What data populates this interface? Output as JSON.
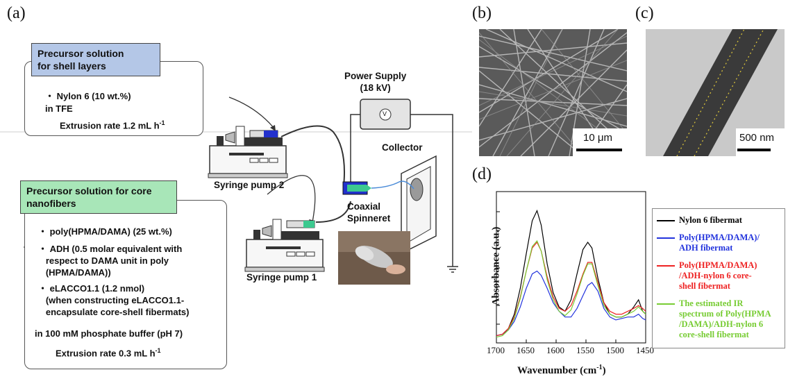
{
  "panels": {
    "a": "(a)",
    "b": "(b)",
    "c": "(c)",
    "d": "(d)"
  },
  "shell_box": {
    "header": "Precursor solution\nfor shell layers",
    "lines": [
      "・ Nylon 6 (10 wt.%)",
      "in TFE",
      "Extrusion rate 1.2 mL h",
      "-1"
    ]
  },
  "core_box": {
    "header": "Precursor solution for core\nnanofibers",
    "item1": "・ poly(HPMA/DAMA) (25 wt.%)",
    "item2": "・ ADH (0.5 molar equivalent with\n   respect to DAMA unit in poly\n   (HPMA/DAMA))",
    "item3": "・ eLACCO1.1 (1.2 nmol)\n   (when constructing eLACCO1.1-\n   encapsulate core-shell fibermats)",
    "buffer": "in 100 mM phosphate buffer (pH 7)",
    "rate": "Extrusion rate 0.3 mL h",
    "rate_sup": "-1"
  },
  "labels": {
    "power_supply": "Power Supply\n(18 kV)",
    "voltmeter": "V",
    "collector": "Collector",
    "pump2": "Syringe pump 2",
    "pump1": "Syringe pump 1",
    "spinneret": "Coaxial\nSpinneret"
  },
  "scalebars": {
    "b": "10 μm",
    "c": "500 nm"
  },
  "colors": {
    "shell_header": "#b4c7e7",
    "core_header": "#a8e6b8",
    "nylon": "#000000",
    "poly": "#2233dd",
    "coreshell": "#ee2222",
    "estimated": "#77cc33"
  },
  "chart_data": {
    "type": "line",
    "xlabel": "Wavenumber (cm",
    "xlabel_sup": "-1",
    "xlabel_end": ")",
    "ylabel": "Absorbance (a.u.)",
    "x_ticks": [
      "1700",
      "1650",
      "1600",
      "1550",
      "1500",
      "1450"
    ],
    "xlim": [
      1700,
      1450
    ],
    "legend": [
      {
        "name": "Nylon 6 fibermat",
        "color": "#000000"
      },
      {
        "name": "Poly(HPMA/DAMA)/\nADH fibermat",
        "color": "#2233dd"
      },
      {
        "name": "Poly(HPMA/DAMA)\n/ADH-nylon 6 core-\nshell fibermat",
        "color": "#ee2222"
      },
      {
        "name": "The estimated IR\nspectrum of Poly(HPMA\n/DAMA)/ADH-nylon 6\ncore-shell fibermat",
        "color": "#77cc33"
      }
    ],
    "series": [
      {
        "x": [
          1700,
          1690,
          1680,
          1670,
          1660,
          1650,
          1640,
          1632,
          1625,
          1615,
          1605,
          1595,
          1585,
          1575,
          1565,
          1555,
          1547,
          1540,
          1530,
          1520,
          1510,
          1500,
          1490,
          1480,
          1470,
          1462,
          1455,
          1450
        ],
        "y": [
          0.05,
          0.06,
          0.1,
          0.2,
          0.38,
          0.62,
          0.85,
          0.92,
          0.82,
          0.55,
          0.35,
          0.25,
          0.22,
          0.3,
          0.48,
          0.65,
          0.7,
          0.66,
          0.45,
          0.28,
          0.2,
          0.18,
          0.18,
          0.2,
          0.25,
          0.3,
          0.22,
          0.2
        ]
      },
      {
        "x": [
          1700,
          1690,
          1680,
          1670,
          1660,
          1650,
          1640,
          1632,
          1625,
          1615,
          1605,
          1595,
          1585,
          1575,
          1565,
          1555,
          1547,
          1540,
          1530,
          1520,
          1510,
          1500,
          1490,
          1480,
          1470,
          1462,
          1455,
          1450
        ],
        "y": [
          0.05,
          0.06,
          0.09,
          0.15,
          0.25,
          0.38,
          0.48,
          0.5,
          0.47,
          0.38,
          0.28,
          0.22,
          0.18,
          0.18,
          0.24,
          0.33,
          0.4,
          0.42,
          0.36,
          0.24,
          0.18,
          0.16,
          0.17,
          0.18,
          0.18,
          0.2,
          0.17,
          0.16
        ]
      },
      {
        "x": [
          1700,
          1690,
          1680,
          1670,
          1660,
          1650,
          1640,
          1632,
          1625,
          1615,
          1605,
          1595,
          1585,
          1575,
          1565,
          1555,
          1547,
          1540,
          1530,
          1520,
          1510,
          1500,
          1490,
          1480,
          1470,
          1462,
          1455,
          1450
        ],
        "y": [
          0.05,
          0.06,
          0.1,
          0.18,
          0.32,
          0.5,
          0.66,
          0.7,
          0.64,
          0.46,
          0.32,
          0.24,
          0.22,
          0.26,
          0.36,
          0.48,
          0.56,
          0.56,
          0.42,
          0.28,
          0.22,
          0.2,
          0.2,
          0.22,
          0.24,
          0.26,
          0.24,
          0.22
        ]
      },
      {
        "x": [
          1700,
          1690,
          1680,
          1670,
          1660,
          1650,
          1640,
          1632,
          1625,
          1615,
          1605,
          1595,
          1585,
          1575,
          1565,
          1555,
          1547,
          1540,
          1530,
          1520,
          1510,
          1500,
          1490,
          1480,
          1470,
          1462,
          1455,
          1450
        ],
        "y": [
          0.04,
          0.05,
          0.09,
          0.17,
          0.31,
          0.5,
          0.67,
          0.71,
          0.64,
          0.44,
          0.3,
          0.22,
          0.19,
          0.23,
          0.34,
          0.47,
          0.55,
          0.55,
          0.4,
          0.26,
          0.2,
          0.18,
          0.18,
          0.2,
          0.22,
          0.25,
          0.22,
          0.2
        ]
      }
    ]
  }
}
